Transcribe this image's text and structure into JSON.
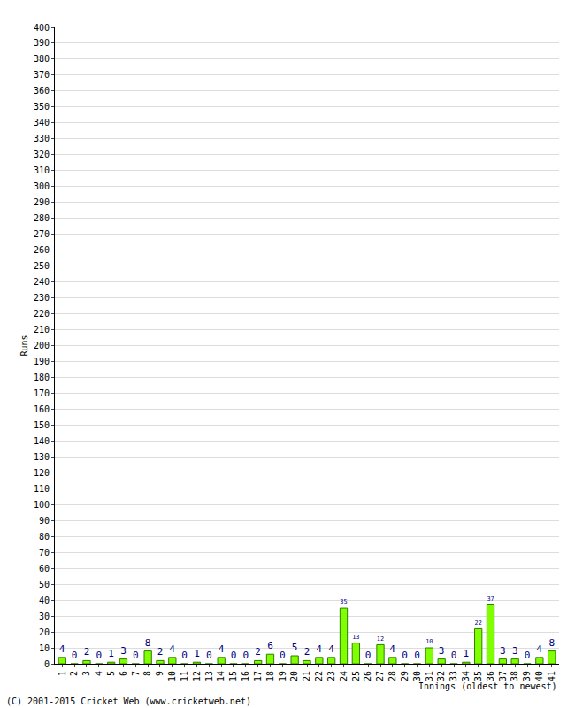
{
  "chart_data": {
    "type": "bar",
    "x_label": "Innings (oldest to newest)",
    "y_label": "Runs",
    "annotations": [
      "(C) 2001-2015 Cricket Web (www.cricketweb.net)"
    ],
    "categories": [
      "1",
      "2",
      "3",
      "4",
      "5",
      "6",
      "7",
      "8",
      "9",
      "10",
      "11",
      "12",
      "13",
      "14",
      "15",
      "16",
      "17",
      "18",
      "19",
      "20",
      "21",
      "22",
      "23",
      "24",
      "25",
      "26",
      "27",
      "28",
      "29",
      "30",
      "31",
      "32",
      "33",
      "34",
      "35",
      "36",
      "37",
      "38",
      "39",
      "40",
      "41"
    ],
    "values": [
      4,
      0,
      2,
      0,
      1,
      3,
      0,
      8,
      2,
      4,
      0,
      1,
      0,
      4,
      0,
      0,
      2,
      6,
      0,
      5,
      2,
      4,
      4,
      35,
      13,
      0,
      12,
      4,
      0,
      0,
      10,
      3,
      0,
      1,
      22,
      37,
      3,
      3,
      0,
      4,
      8
    ],
    "color": "#80ff00",
    "ylim": [
      0,
      400
    ],
    "yticks": [
      0,
      10,
      20,
      30,
      40,
      50,
      60,
      70,
      80,
      90,
      100,
      110,
      120,
      130,
      140,
      150,
      160,
      170,
      180,
      190,
      200,
      210,
      220,
      230,
      240,
      250,
      260,
      270,
      280,
      290,
      300,
      310,
      320,
      330,
      340,
      350,
      360,
      370,
      380,
      390,
      400
    ],
    "grid": true,
    "data_labels": true
  }
}
